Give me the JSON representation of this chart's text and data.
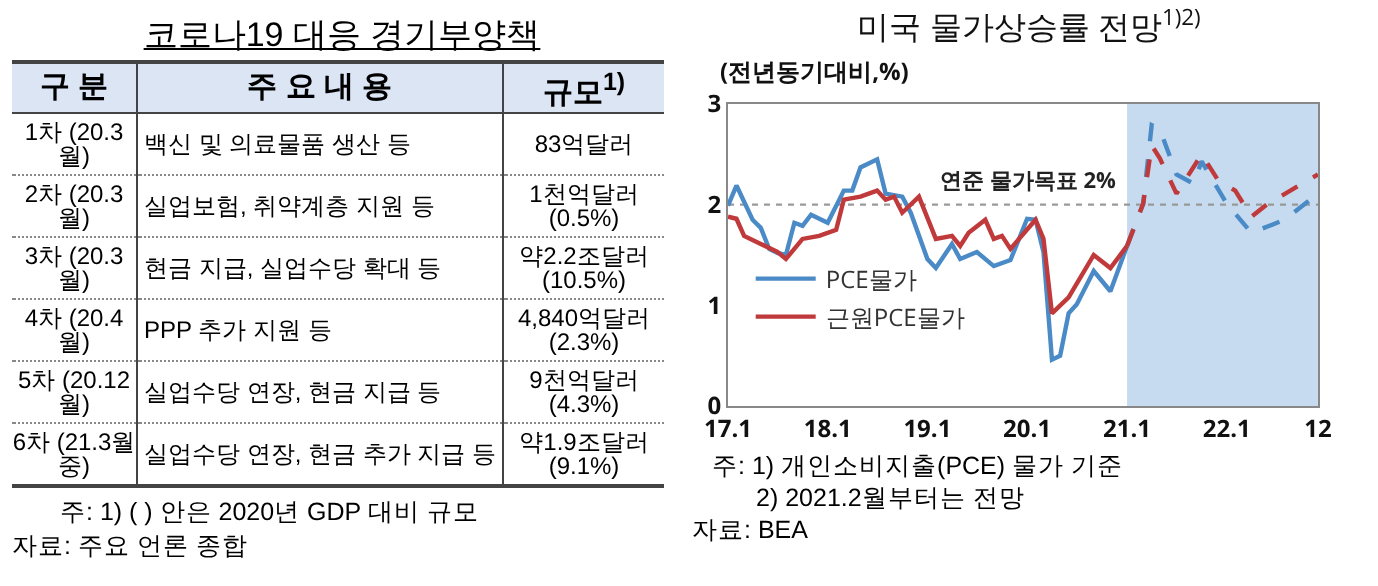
{
  "chart_data": [
    {
      "type": "other",
      "title": "코로나19 대응 경기부양책",
      "categories": [
        "구 분",
        "주 요 내 용",
        "규모$^{1)}$"
      ],
      "cell_labels": [
        [
          "1차 (20.3월)",
          "백신 및 의료물품 생산 등",
          "83억달러"
        ],
        [
          "2차 (20.3월)",
          "실업보험, 취약계층 지원 등",
          "1천억달러 (0.5%)"
        ],
        [
          "3차 (20.3월)",
          "현금 지급, 실업수당 확대 등",
          "약2.2조달러 (10.5%)"
        ],
        [
          "4차 (20.4월)",
          "PPP 추가 지원 등",
          "4,840억달러 (2.3%)"
        ],
        [
          "5차 (20.12월)",
          "실업수당 연장, 현금 지급 등",
          "9천억달러 (4.3%)"
        ],
        [
          "6차 (21.3월중)",
          "실업수당 연장, 현금 추가 지급 등",
          "약1.9조달러 (9.1%)"
        ]
      ],
      "annotations": [
        "주: 1) ( ) 안은 2020년 GDP 대비 규모",
        "자료: 주요 언론 종합"
      ]
    },
    {
      "type": "line",
      "title": "미국 물가상승률 전망$^{1)2)}$",
      "ylabel": "(전년동기대비,%)",
      "xlim": [
        "2017-01",
        "2022-12"
      ],
      "xticks": [
        {
          "value": "2017-01",
          "label": "17.1"
        },
        {
          "value": "2018-01",
          "label": "18.1"
        },
        {
          "value": "2019-01",
          "label": "19.1"
        },
        {
          "value": "2020-01",
          "label": "20.1"
        },
        {
          "value": "2021-01",
          "label": "21.1"
        },
        {
          "value": "2022-01",
          "label": "22.1"
        },
        {
          "value": "2022-12",
          "label": "12"
        }
      ],
      "ylim": [
        0,
        3
      ],
      "yticks": [
        0,
        1,
        2,
        3
      ],
      "grid": false,
      "legend": "bottom left",
      "marker": "none",
      "series": [
        {
          "name": "PCE물가",
          "color": "#4a8ac6",
          "line_style": "solid",
          "x": [
            "2017-01",
            "2017-02",
            "2017-04",
            "2017-05",
            "2017-06",
            "2017-07",
            "2017-08",
            "2017-09",
            "2017-10",
            "2017-11",
            "2018-01",
            "2018-03",
            "2018-04",
            "2018-05",
            "2018-07",
            "2018-08",
            "2018-10",
            "2018-11",
            "2019-01",
            "2019-02",
            "2019-04",
            "2019-05",
            "2019-07",
            "2019-09",
            "2019-11",
            "2020-01",
            "2020-02",
            "2020-03",
            "2020-04",
            "2020-05",
            "2020-06",
            "2020-07",
            "2020-09",
            "2020-11",
            "2021-01"
          ],
          "values": [
            1.99,
            2.19,
            1.85,
            1.77,
            1.56,
            1.52,
            1.5,
            1.82,
            1.79,
            1.9,
            1.82,
            2.14,
            2.14,
            2.37,
            2.45,
            2.11,
            2.08,
            1.92,
            1.46,
            1.37,
            1.61,
            1.46,
            1.53,
            1.39,
            1.45,
            1.86,
            1.85,
            1.53,
            0.46,
            0.5,
            0.92,
            1.01,
            1.34,
            1.14,
            1.59
          ]
        },
        {
          "name": "근원PCE물가",
          "color": "#c0393b",
          "line_style": "solid",
          "x": [
            "2017-01",
            "2017-02",
            "2017-03",
            "2017-05",
            "2017-07",
            "2017-08",
            "2017-10",
            "2017-12",
            "2018-02",
            "2018-03",
            "2018-05",
            "2018-07",
            "2018-08",
            "2018-09",
            "2018-10",
            "2018-12",
            "2019-02",
            "2019-04",
            "2019-05",
            "2019-06",
            "2019-08",
            "2019-09",
            "2019-10",
            "2019-11",
            "2020-02",
            "2020-03",
            "2020-04",
            "2020-06",
            "2020-09",
            "2020-11",
            "2021-01"
          ],
          "values": [
            1.88,
            1.86,
            1.69,
            1.61,
            1.53,
            1.46,
            1.66,
            1.69,
            1.75,
            2.05,
            2.08,
            2.14,
            2.05,
            2.08,
            1.92,
            2.08,
            1.66,
            1.69,
            1.59,
            1.72,
            1.85,
            1.66,
            1.69,
            1.56,
            1.85,
            1.66,
            0.92,
            1.08,
            1.5,
            1.37,
            1.59
          ]
        },
        {
          "color": "#4a8ac6",
          "line_style": "dashed",
          "x": [
            "2021-01",
            "2021-03",
            "2021-04",
            "2021-05",
            "2021-07",
            "2021-09",
            "2021-10",
            "2022-01",
            "2022-04",
            "2022-08",
            "2022-12"
          ],
          "values": [
            1.59,
            2.01,
            2.79,
            2.75,
            2.3,
            2.21,
            2.43,
            2.01,
            1.72,
            1.85,
            2.11
          ]
        },
        {
          "color": "#c0393b",
          "line_style": "dashed",
          "x": [
            "2021-01",
            "2021-03",
            "2021-04",
            "2021-05",
            "2021-07",
            "2021-08",
            "2021-10",
            "2021-12",
            "2022-02",
            "2022-04",
            "2022-06",
            "2022-12"
          ],
          "values": [
            1.59,
            2.01,
            2.59,
            2.46,
            2.11,
            2.24,
            2.5,
            2.24,
            2.14,
            1.88,
            2.01,
            2.3
          ]
        }
      ],
      "ref_lines": [
        {
          "axis": "y",
          "value": 2,
          "label": "연준 물가목표 2%",
          "color": "#999999",
          "line_style": "dotted"
        }
      ],
      "bands": [
        {
          "axis": "x",
          "from": "2021-01",
          "to": "2022-12",
          "color": "#c6dbef"
        }
      ],
      "annotations": [
        "주: 1) 개인소비지출(PCE) 물가 기준",
        "2) 2021.2월부터는 전망",
        "자료: BEA"
      ]
    }
  ]
}
